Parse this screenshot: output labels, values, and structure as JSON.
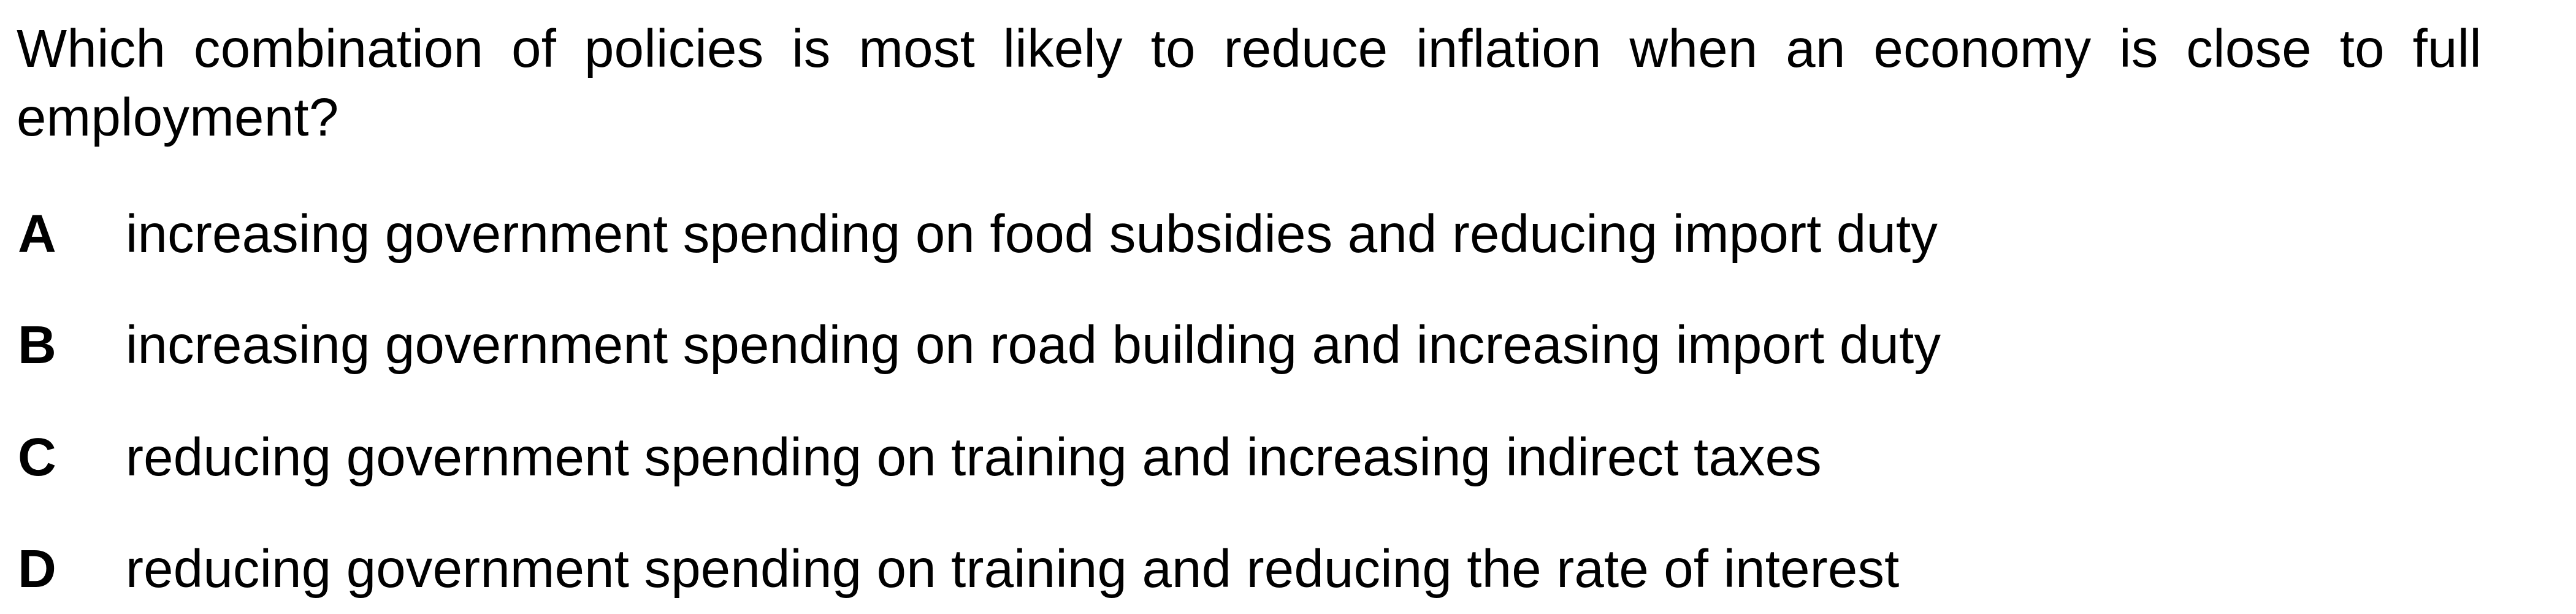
{
  "question": "Which combination of policies is most likely to reduce inflation when an economy is close to full employment?",
  "options": [
    {
      "letter": "A",
      "text": "increasing government spending on food subsidies and reducing import duty"
    },
    {
      "letter": "B",
      "text": "increasing government spending on road building and increasing import duty"
    },
    {
      "letter": "C",
      "text": "reducing government spending on training and increasing indirect taxes"
    },
    {
      "letter": "D",
      "text": "reducing government spending on training and reducing the rate of interest"
    }
  ]
}
